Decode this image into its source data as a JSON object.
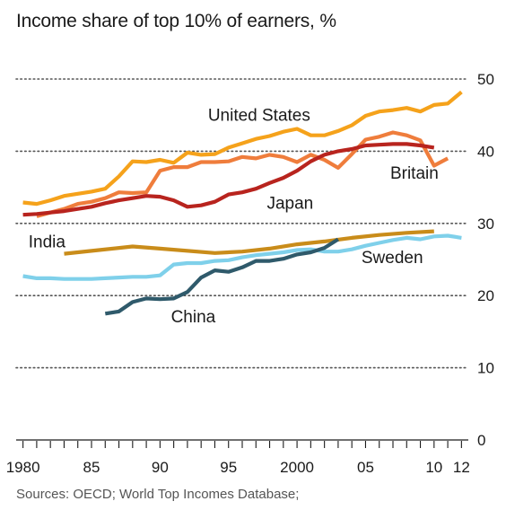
{
  "chart_data": {
    "type": "line",
    "title": "Income share of top 10% of earners, %",
    "source": "Sources: OECD; World Top Incomes Database;",
    "xlabel": "",
    "ylabel": "",
    "xlim": [
      1979.5,
      2012.5
    ],
    "ylim": [
      0,
      50
    ],
    "y_ticks": [
      0,
      10,
      20,
      30,
      40,
      50
    ],
    "x_tick_labels": [
      {
        "x": 1980,
        "label": "1980"
      },
      {
        "x": 1985,
        "label": "85"
      },
      {
        "x": 1990,
        "label": "90"
      },
      {
        "x": 1995,
        "label": "95"
      },
      {
        "x": 2000,
        "label": "2000"
      },
      {
        "x": 2005,
        "label": "05"
      },
      {
        "x": 2010,
        "label": "10"
      },
      {
        "x": 2012,
        "label": "12"
      }
    ],
    "grid": "horizontal-dotted",
    "y_axis_side": "right",
    "series": [
      {
        "name": "United States",
        "color": "#f5a21b",
        "label_pos": [
          1993.5,
          44.2
        ],
        "points": [
          [
            1980,
            32.9
          ],
          [
            1981,
            32.7
          ],
          [
            1982,
            33.2
          ],
          [
            1983,
            33.8
          ],
          [
            1984,
            34.1
          ],
          [
            1985,
            34.4
          ],
          [
            1986,
            34.8
          ],
          [
            1987,
            36.5
          ],
          [
            1988,
            38.6
          ],
          [
            1989,
            38.5
          ],
          [
            1990,
            38.8
          ],
          [
            1991,
            38.4
          ],
          [
            1992,
            39.8
          ],
          [
            1993,
            39.5
          ],
          [
            1994,
            39.6
          ],
          [
            1995,
            40.5
          ],
          [
            1996,
            41.1
          ],
          [
            1997,
            41.7
          ],
          [
            1998,
            42.1
          ],
          [
            1999,
            42.7
          ],
          [
            2000,
            43.1
          ],
          [
            2001,
            42.2
          ],
          [
            2002,
            42.2
          ],
          [
            2003,
            42.8
          ],
          [
            2004,
            43.6
          ],
          [
            2005,
            44.9
          ],
          [
            2006,
            45.5
          ],
          [
            2007,
            45.7
          ],
          [
            2008,
            46.0
          ],
          [
            2009,
            45.5
          ],
          [
            2010,
            46.4
          ],
          [
            2011,
            46.6
          ],
          [
            2012,
            48.2
          ]
        ]
      },
      {
        "name": "Britain",
        "color": "#ef7d3c",
        "label_pos": [
          2006.8,
          36.2
        ],
        "points": [
          [
            1981,
            31.0
          ],
          [
            1982,
            31.5
          ],
          [
            1983,
            32.0
          ],
          [
            1984,
            32.7
          ],
          [
            1985,
            33.0
          ],
          [
            1986,
            33.5
          ],
          [
            1987,
            34.3
          ],
          [
            1988,
            34.2
          ],
          [
            1989,
            34.3
          ],
          [
            1990,
            37.3
          ],
          [
            1991,
            37.8
          ],
          [
            1992,
            37.8
          ],
          [
            1993,
            38.5
          ],
          [
            1994,
            38.5
          ],
          [
            1995,
            38.6
          ],
          [
            1996,
            39.2
          ],
          [
            1997,
            39.0
          ],
          [
            1998,
            39.5
          ],
          [
            1999,
            39.2
          ],
          [
            2000,
            38.5
          ],
          [
            2001,
            39.5
          ],
          [
            2002,
            38.8
          ],
          [
            2003,
            37.7
          ],
          [
            2004,
            39.6
          ],
          [
            2005,
            41.6
          ],
          [
            2006,
            42.0
          ],
          [
            2007,
            42.6
          ],
          [
            2008,
            42.2
          ],
          [
            2009,
            41.5
          ],
          [
            2010,
            38.0
          ],
          [
            2011,
            39.0
          ]
        ]
      },
      {
        "name": "Japan",
        "color": "#b8241e",
        "label_pos": [
          1997.8,
          32.0
        ],
        "points": [
          [
            1980,
            31.2
          ],
          [
            1981,
            31.3
          ],
          [
            1982,
            31.5
          ],
          [
            1983,
            31.7
          ],
          [
            1984,
            32.0
          ],
          [
            1985,
            32.3
          ],
          [
            1986,
            32.8
          ],
          [
            1987,
            33.2
          ],
          [
            1988,
            33.5
          ],
          [
            1989,
            33.8
          ],
          [
            1990,
            33.7
          ],
          [
            1991,
            33.2
          ],
          [
            1992,
            32.3
          ],
          [
            1993,
            32.5
          ],
          [
            1994,
            33.0
          ],
          [
            1995,
            34.0
          ],
          [
            1996,
            34.3
          ],
          [
            1997,
            34.8
          ],
          [
            1998,
            35.6
          ],
          [
            1999,
            36.3
          ],
          [
            2000,
            37.3
          ],
          [
            2001,
            38.6
          ],
          [
            2002,
            39.5
          ],
          [
            2003,
            40.0
          ],
          [
            2004,
            40.3
          ],
          [
            2005,
            40.8
          ],
          [
            2006,
            40.9
          ],
          [
            2007,
            41.0
          ],
          [
            2008,
            41.0
          ],
          [
            2009,
            40.8
          ],
          [
            2010,
            40.5
          ]
        ]
      },
      {
        "name": "India",
        "color": "#c98c1a",
        "label_pos": [
          1980.4,
          26.7
        ],
        "points": [
          [
            1983,
            25.8
          ],
          [
            1985,
            26.2
          ],
          [
            1988,
            26.8
          ],
          [
            1990,
            26.5
          ],
          [
            1994,
            25.9
          ],
          [
            1996,
            26.1
          ],
          [
            1998,
            26.5
          ],
          [
            2000,
            27.1
          ],
          [
            2002,
            27.5
          ],
          [
            2004,
            28.0
          ],
          [
            2006,
            28.4
          ],
          [
            2008,
            28.7
          ],
          [
            2010,
            28.9
          ]
        ]
      },
      {
        "name": "Sweden",
        "color": "#7fd0ea",
        "label_pos": [
          2004.7,
          24.5
        ],
        "points": [
          [
            1980,
            22.7
          ],
          [
            1981,
            22.4
          ],
          [
            1982,
            22.4
          ],
          [
            1983,
            22.3
          ],
          [
            1984,
            22.3
          ],
          [
            1985,
            22.3
          ],
          [
            1986,
            22.4
          ],
          [
            1987,
            22.5
          ],
          [
            1988,
            22.6
          ],
          [
            1989,
            22.6
          ],
          [
            1990,
            22.8
          ],
          [
            1991,
            24.3
          ],
          [
            1992,
            24.5
          ],
          [
            1993,
            24.5
          ],
          [
            1994,
            24.8
          ],
          [
            1995,
            24.9
          ],
          [
            1996,
            25.3
          ],
          [
            1997,
            25.6
          ],
          [
            1998,
            25.8
          ],
          [
            1999,
            26.0
          ],
          [
            2000,
            26.3
          ],
          [
            2001,
            26.4
          ],
          [
            2002,
            26.1
          ],
          [
            2003,
            26.1
          ],
          [
            2004,
            26.4
          ],
          [
            2005,
            26.9
          ],
          [
            2006,
            27.3
          ],
          [
            2007,
            27.7
          ],
          [
            2008,
            28.0
          ],
          [
            2009,
            27.8
          ],
          [
            2010,
            28.2
          ],
          [
            2011,
            28.3
          ],
          [
            2012,
            28.0
          ]
        ]
      },
      {
        "name": "China",
        "color": "#2f5a6b",
        "label_pos": [
          1990.8,
          16.3
        ],
        "points": [
          [
            1986,
            17.5
          ],
          [
            1987,
            17.8
          ],
          [
            1988,
            19.1
          ],
          [
            1989,
            19.6
          ],
          [
            1990,
            19.5
          ],
          [
            1991,
            19.6
          ],
          [
            1992,
            20.5
          ],
          [
            1993,
            22.5
          ],
          [
            1994,
            23.5
          ],
          [
            1995,
            23.3
          ],
          [
            1996,
            23.9
          ],
          [
            1997,
            24.8
          ],
          [
            1998,
            24.8
          ],
          [
            1999,
            25.1
          ],
          [
            2000,
            25.7
          ],
          [
            2001,
            26.0
          ],
          [
            2002,
            26.6
          ],
          [
            2003,
            27.8
          ]
        ]
      }
    ]
  }
}
